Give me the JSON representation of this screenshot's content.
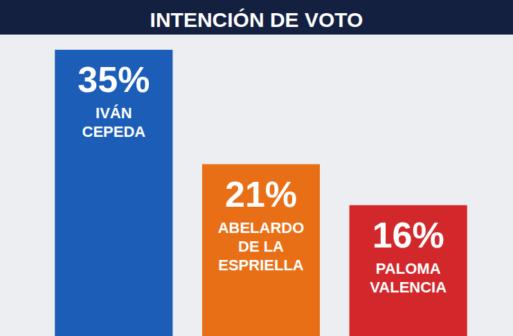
{
  "chart_data": {
    "type": "bar",
    "title": "INTENCIÓN DE VOTO",
    "categories": [
      "IVÁN CEPEDA",
      "ABELARDO DE LA ESPRIELLA",
      "PALOMA VALENCIA"
    ],
    "values": [
      35,
      21,
      16
    ],
    "value_labels": [
      "35%",
      "21%",
      "16%"
    ],
    "colors": [
      "#1c5db8",
      "#e96f17",
      "#d3282b"
    ],
    "ylim": [
      0,
      35
    ],
    "grid": false,
    "tick_labels": false,
    "data_labels": true
  }
}
